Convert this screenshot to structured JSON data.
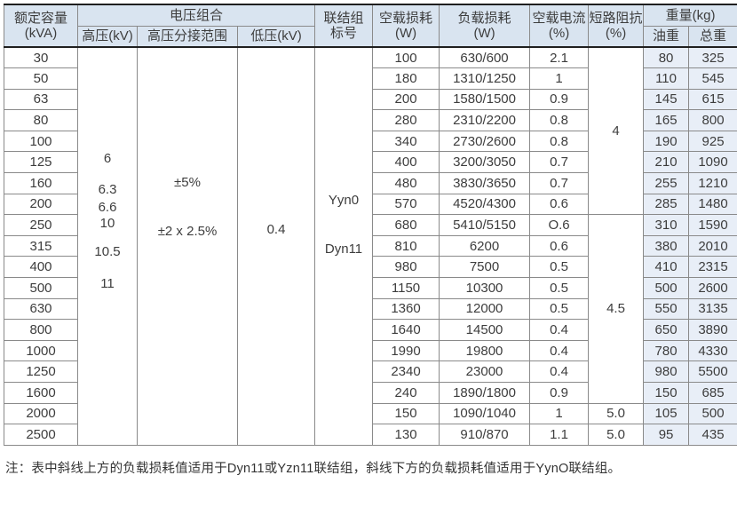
{
  "colors": {
    "header_bg": "#d9e4f0",
    "weight_col_bg": "#e8eef7",
    "border": "#8a8a8a",
    "strong_border": "#1f1f1f",
    "text": "#3d3d3d"
  },
  "table": {
    "headers": {
      "capacity_line1": "额定容量",
      "capacity_line2": "(kVA)",
      "voltage_group": "电压组合",
      "hv": "高压(kV)",
      "tap_range": "高压分接范围",
      "lv": "低压(kV)",
      "vector_line1": "联结组",
      "vector_line2": "标号",
      "no_load_loss_line1": "空载损耗",
      "no_load_loss_line2": "(W)",
      "load_loss_line1": "负载损耗",
      "load_loss_line2": "(W)",
      "no_load_current_line1": "空载电流",
      "no_load_current_line2": "(%)",
      "impedance_line1": "短路阻抗",
      "impedance_line2": "(%)",
      "weight": "重量(kg)",
      "oil_weight": "油重",
      "total_weight": "总重"
    },
    "merged": {
      "hv_values": [
        "6",
        "6.3",
        "6.6",
        "10",
        "10.5",
        "11"
      ],
      "tap_values": [
        "±5%",
        "±2 x 2.5%"
      ],
      "lv_value": "0.4",
      "vector_values": [
        "Yyn0",
        "Dyn11"
      ]
    },
    "impedance_groups": [
      {
        "value": "4",
        "span": 8
      },
      {
        "value": "4.5",
        "span": 9
      },
      {
        "value": "5.0",
        "span": 1
      },
      {
        "value": "5.0",
        "span": 1
      }
    ],
    "rows": [
      {
        "kva": "30",
        "nll": "100",
        "ll": "630/600",
        "nlc": "2.1",
        "oil": "80",
        "total": "325"
      },
      {
        "kva": "50",
        "nll": "180",
        "ll": "1310/1250",
        "nlc": "1",
        "oil": "110",
        "total": "545"
      },
      {
        "kva": "63",
        "nll": "200",
        "ll": "1580/1500",
        "nlc": "0.9",
        "oil": "145",
        "total": "615"
      },
      {
        "kva": "80",
        "nll": "280",
        "ll": "2310/2200",
        "nlc": "0.8",
        "oil": "165",
        "total": "800"
      },
      {
        "kva": "100",
        "nll": "340",
        "ll": "2730/2600",
        "nlc": "0.8",
        "oil": "190",
        "total": "925"
      },
      {
        "kva": "125",
        "nll": "400",
        "ll": "3200/3050",
        "nlc": "0.7",
        "oil": "210",
        "total": "1090"
      },
      {
        "kva": "160",
        "nll": "480",
        "ll": "3830/3650",
        "nlc": "0.7",
        "oil": "255",
        "total": "1210"
      },
      {
        "kva": "200",
        "nll": "570",
        "ll": "4520/4300",
        "nlc": "0.6",
        "oil": "285",
        "total": "1480"
      },
      {
        "kva": "250",
        "nll": "680",
        "ll": "5410/5150",
        "nlc": "O.6",
        "oil": "310",
        "total": "1590"
      },
      {
        "kva": "315",
        "nll": "810",
        "ll": "6200",
        "nlc": "0.6",
        "oil": "380",
        "total": "2010"
      },
      {
        "kva": "400",
        "nll": "980",
        "ll": "7500",
        "nlc": "0.5",
        "oil": "410",
        "total": "2315"
      },
      {
        "kva": "500",
        "nll": "1150",
        "ll": "10300",
        "nlc": "0.5",
        "oil": "500",
        "total": "2600"
      },
      {
        "kva": "630",
        "nll": "1360",
        "ll": "12000",
        "nlc": "0.5",
        "oil": "550",
        "total": "3135"
      },
      {
        "kva": "800",
        "nll": "1640",
        "ll": "14500",
        "nlc": "0.4",
        "oil": "650",
        "total": "3890"
      },
      {
        "kva": "1000",
        "nll": "1990",
        "ll": "19800",
        "nlc": "0.4",
        "oil": "780",
        "total": "4330"
      },
      {
        "kva": "1250",
        "nll": "2340",
        "ll": "23000",
        "nlc": "0.4",
        "oil": "980",
        "total": "5500"
      },
      {
        "kva": "1600",
        "nll": "240",
        "ll": "1890/1800",
        "nlc": "0.9",
        "oil": "150",
        "total": "685"
      },
      {
        "kva": "2000",
        "nll": "150",
        "ll": "1090/1040",
        "nlc": "1",
        "oil": "105",
        "total": "500"
      },
      {
        "kva": "2500",
        "nll": "130",
        "ll": "910/870",
        "nlc": "1.1",
        "oil": "95",
        "total": "435"
      }
    ]
  },
  "note": "注：表中斜线上方的负载损耗值适用于Dyn11或Yzn11联结组，斜线下方的负载损耗值适用于YynO联结组。"
}
